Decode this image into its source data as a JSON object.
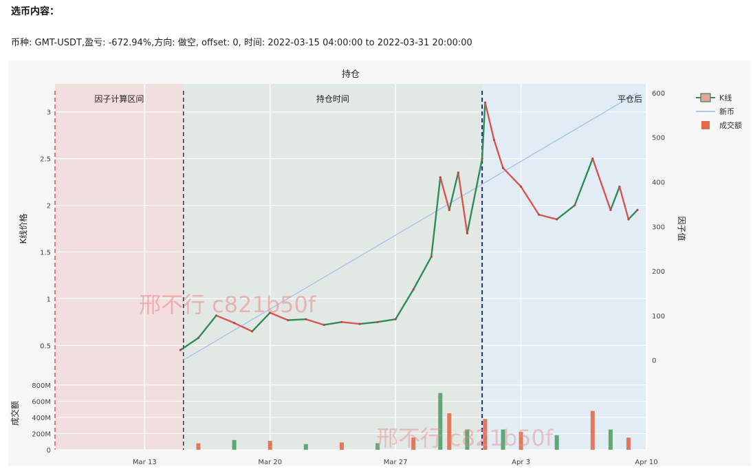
{
  "page": {
    "section_title": "选币内容：",
    "summary": "币种: GMT-USDT,盈亏: -672.94%,方向: 做空, offset: 0, 时间: 2022-03-15 04:00:00 to 2022-03-31 20:00:00"
  },
  "watermark": {
    "text_1": "邢不行 c821b50f",
    "text_2": "邢不行 c821b50f"
  },
  "chart_data": {
    "type": "line",
    "title": "持仓",
    "y_left_label": "K线价格",
    "y_right_label": "因子值",
    "y_volume_label": "成交额",
    "region_labels": [
      "因子计算区间",
      "持仓时间",
      "平仓后"
    ],
    "legend": [
      "K线",
      "新币",
      "成交额"
    ],
    "x_ticks": [
      "Mar 13",
      "Mar 20",
      "Mar 27",
      "Apr 3",
      "Apr 10"
    ],
    "y_left_ticks": [
      "0.5",
      "1",
      "1.5",
      "2",
      "2.5",
      "3"
    ],
    "y_right_ticks": [
      "0",
      "100",
      "200",
      "300",
      "400",
      "500",
      "600"
    ],
    "y_volume_ticks": [
      "0",
      "200M",
      "400M",
      "600M",
      "800M"
    ],
    "y_left_range": [
      0.2,
      3.3
    ],
    "y_right_range": [
      -30,
      620
    ],
    "y_volume_range": [
      0,
      900
    ],
    "x_range": [
      "2022-03-10",
      "2022-04-10"
    ],
    "factor_start": "2022-03-08 00:00",
    "position_start": "2022-03-15 04:00",
    "position_end": "2022-03-31 20:00",
    "price": {
      "dates": [
        "2022-03-15",
        "2022-03-16",
        "2022-03-17",
        "2022-03-18",
        "2022-03-19",
        "2022-03-20",
        "2022-03-21",
        "2022-03-22",
        "2022-03-23",
        "2022-03-24",
        "2022-03-25",
        "2022-03-26",
        "2022-03-27",
        "2022-03-28",
        "2022-03-29",
        "2022-03-29 12:00",
        "2022-03-30",
        "2022-03-30 12:00",
        "2022-03-31",
        "2022-03-31 20:00",
        "2022-04-01",
        "2022-04-01 12:00",
        "2022-04-02",
        "2022-04-03",
        "2022-04-04",
        "2022-04-05",
        "2022-04-06",
        "2022-04-07",
        "2022-04-08",
        "2022-04-08 12:00",
        "2022-04-09",
        "2022-04-09 12:00"
      ],
      "values": [
        0.45,
        0.58,
        0.82,
        0.74,
        0.65,
        0.85,
        0.77,
        0.78,
        0.72,
        0.75,
        0.73,
        0.75,
        0.78,
        1.1,
        1.45,
        2.3,
        1.95,
        2.35,
        1.7,
        2.5,
        3.1,
        2.7,
        2.4,
        2.2,
        1.9,
        1.85,
        2.0,
        2.5,
        1.95,
        2.2,
        1.85,
        1.95
      ]
    },
    "factor": {
      "dates": [
        "2022-03-15 04:00",
        "2022-04-09 12:00"
      ],
      "values": [
        0,
        600
      ]
    },
    "volume": {
      "dates": [
        "2022-03-16",
        "2022-03-18",
        "2022-03-20",
        "2022-03-22",
        "2022-03-24",
        "2022-03-26",
        "2022-03-28",
        "2022-03-29 12:00",
        "2022-03-30",
        "2022-03-31",
        "2022-04-01",
        "2022-04-02",
        "2022-04-03",
        "2022-04-05",
        "2022-04-07",
        "2022-04-08",
        "2022-04-09"
      ],
      "values": [
        80,
        120,
        110,
        70,
        90,
        80,
        150,
        700,
        450,
        250,
        380,
        250,
        220,
        180,
        480,
        250,
        150
      ]
    }
  },
  "colors": {
    "up": "#2e8b57",
    "down": "#d9534f",
    "factor_line": "#aec7e8",
    "volume_down": "#e06c4c",
    "volume_up": "#52a06a",
    "factor_region": "#f2dede",
    "position_region": "#e2e8e4",
    "after_region": "#e1ecf4",
    "factor_start_line": "#d9534f",
    "position_start_line": "#333333",
    "position_end_line": "#1f2a80"
  }
}
